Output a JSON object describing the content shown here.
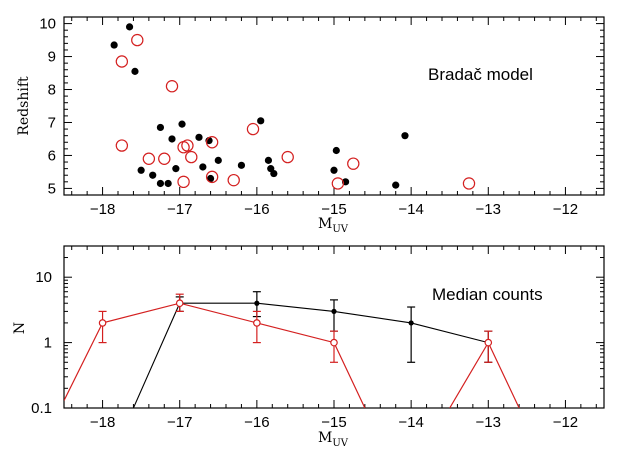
{
  "chart_data": [
    {
      "type": "scatter",
      "annotation": "Bradač model",
      "xlabel": "M",
      "xlabel_sub": "UV",
      "ylabel": "Redshift",
      "xlim": [
        -18.5,
        -11.5
      ],
      "ylim": [
        4.8,
        10.2
      ],
      "xticks": [
        -18,
        -17,
        -16,
        -15,
        -14,
        -13,
        -12
      ],
      "xtick_labels": [
        "−18",
        "−17",
        "−16",
        "−15",
        "−14",
        "−13",
        "−12"
      ],
      "yticks": [
        5,
        6,
        7,
        8,
        9,
        10
      ],
      "ytick_labels": [
        "5",
        "6",
        "7",
        "8",
        "9",
        "10"
      ],
      "series": [
        {
          "name": "filled",
          "color": "#000000",
          "marker": "filled-circle",
          "points": [
            [
              -17.85,
              9.35
            ],
            [
              -17.65,
              9.9
            ],
            [
              -17.58,
              8.55
            ],
            [
              -17.5,
              5.55
            ],
            [
              -17.35,
              5.4
            ],
            [
              -17.25,
              6.85
            ],
            [
              -17.25,
              5.15
            ],
            [
              -17.15,
              5.15
            ],
            [
              -17.1,
              6.5
            ],
            [
              -17.05,
              5.6
            ],
            [
              -16.97,
              6.95
            ],
            [
              -16.75,
              6.55
            ],
            [
              -16.7,
              5.65
            ],
            [
              -16.62,
              6.45
            ],
            [
              -16.6,
              5.3
            ],
            [
              -16.5,
              5.85
            ],
            [
              -16.2,
              5.7
            ],
            [
              -15.95,
              7.05
            ],
            [
              -15.85,
              5.85
            ],
            [
              -15.82,
              5.6
            ],
            [
              -15.78,
              5.45
            ],
            [
              -15.0,
              5.55
            ],
            [
              -14.97,
              6.15
            ],
            [
              -14.85,
              5.2
            ],
            [
              -14.2,
              5.1
            ],
            [
              -14.08,
              6.6
            ]
          ]
        },
        {
          "name": "open",
          "color": "#d42020",
          "marker": "open-circle",
          "points": [
            [
              -17.75,
              8.85
            ],
            [
              -17.55,
              9.5
            ],
            [
              -17.1,
              8.1
            ],
            [
              -17.75,
              6.3
            ],
            [
              -17.4,
              5.9
            ],
            [
              -17.2,
              5.9
            ],
            [
              -16.95,
              6.25
            ],
            [
              -16.95,
              5.2
            ],
            [
              -16.9,
              6.3
            ],
            [
              -16.85,
              5.95
            ],
            [
              -16.58,
              6.4
            ],
            [
              -16.58,
              5.35
            ],
            [
              -16.05,
              6.8
            ],
            [
              -16.3,
              5.25
            ],
            [
              -15.6,
              5.95
            ],
            [
              -14.95,
              5.15
            ],
            [
              -14.75,
              5.75
            ],
            [
              -13.25,
              5.15
            ]
          ]
        }
      ]
    },
    {
      "type": "line",
      "annotation": "Median counts",
      "xlabel": "M",
      "xlabel_sub": "UV",
      "ylabel": "N",
      "yscale": "log",
      "xlim": [
        -18.5,
        -11.5
      ],
      "ylim": [
        0.1,
        30
      ],
      "xticks": [
        -18,
        -17,
        -16,
        -15,
        -14,
        -13,
        -12
      ],
      "xtick_labels": [
        "−18",
        "−17",
        "−16",
        "−15",
        "−14",
        "−13",
        "−12"
      ],
      "yticks": [
        0.1,
        1,
        10
      ],
      "ytick_labels": [
        "0.1",
        "1",
        "10"
      ],
      "series": [
        {
          "name": "black",
          "color": "#000000",
          "marker": "filled-circle",
          "x": [
            -17,
            -16,
            -15,
            -14,
            -13
          ],
          "y": [
            4,
            4,
            3,
            2,
            1
          ],
          "err_lo": [
            3,
            2.5,
            1.5,
            0.5,
            0.5
          ],
          "err_hi": [
            5,
            6,
            4.5,
            3.5,
            1.5
          ],
          "extend_left_to": [
            -17.6,
            0.1
          ]
        },
        {
          "name": "red",
          "color": "#d42020",
          "marker": "open-circle",
          "x": [
            -18,
            -17,
            -16,
            -15,
            -13
          ],
          "y": [
            2,
            4,
            2,
            1,
            1
          ],
          "err_lo": [
            1,
            3,
            1,
            0.5,
            0.5
          ],
          "err_hi": [
            3,
            5.5,
            3,
            1.5,
            1.5
          ],
          "segments": [
            [
              [
                -18.5,
                0.13
              ],
              [
                -18,
                2
              ],
              [
                -17,
                4
              ],
              [
                -16,
                2
              ],
              [
                -15,
                1
              ],
              [
                -14.6,
                0.1
              ]
            ],
            [
              [
                -13.5,
                0.1
              ],
              [
                -13,
                1
              ],
              [
                -12.6,
                0.1
              ]
            ]
          ]
        }
      ]
    }
  ]
}
